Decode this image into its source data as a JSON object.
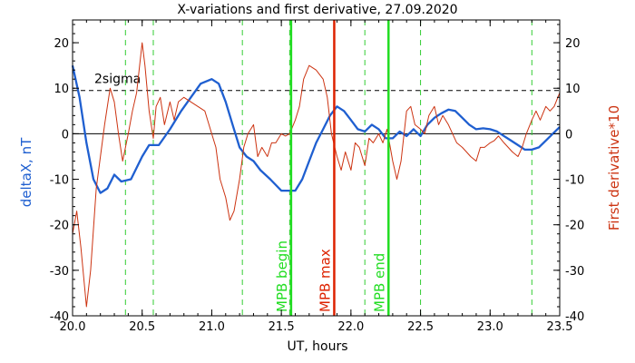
{
  "chart_data": {
    "type": "line",
    "title": "X-variations and first derivative, 27.09.2020",
    "xlabel": "UT, hours",
    "ylabel_left": "deltaX, nT",
    "ylabel_right": "First derivative*10",
    "xlim": [
      20.0,
      23.5
    ],
    "ylim": [
      -40,
      25
    ],
    "x_ticks": [
      20.0,
      20.5,
      21.0,
      21.5,
      22.0,
      22.5,
      23.0,
      23.5
    ],
    "x_tick_labels": [
      "20.0",
      "20.5",
      "21.0",
      "21.5",
      "22.0",
      "22.5",
      "23.0",
      "23.5"
    ],
    "y_ticks": [
      -40,
      -30,
      -20,
      -10,
      0,
      10,
      20
    ],
    "y_tick_labels": [
      "-40",
      "-30",
      "-20",
      "-10",
      "0",
      "10",
      "20"
    ],
    "colors": {
      "deltaX": "#1f5fd0",
      "derivative": "#cc3311",
      "phase_line": "#22dd22",
      "max_line": "#dd2200",
      "dashed_phase": "#33cc33",
      "axis": "#000000"
    },
    "sigma": {
      "value": 9.5,
      "label": "2sigma"
    },
    "zero_line": 0,
    "series": [
      {
        "key": "deltaX",
        "axis": "left",
        "color": "#1f5fd0",
        "points": [
          [
            20.0,
            15
          ],
          [
            20.05,
            8
          ],
          [
            20.1,
            -2
          ],
          [
            20.15,
            -10
          ],
          [
            20.2,
            -13
          ],
          [
            20.25,
            -12
          ],
          [
            20.3,
            -9
          ],
          [
            20.35,
            -10.5
          ],
          [
            20.42,
            -10
          ],
          [
            20.5,
            -5
          ],
          [
            20.55,
            -2.5
          ],
          [
            20.62,
            -2.5
          ],
          [
            20.7,
            1
          ],
          [
            20.78,
            5
          ],
          [
            20.85,
            8
          ],
          [
            20.92,
            11
          ],
          [
            21.0,
            12
          ],
          [
            21.05,
            11
          ],
          [
            21.1,
            7
          ],
          [
            21.15,
            2
          ],
          [
            21.2,
            -3
          ],
          [
            21.25,
            -5
          ],
          [
            21.3,
            -6
          ],
          [
            21.35,
            -8
          ],
          [
            21.42,
            -10
          ],
          [
            21.5,
            -12.5
          ],
          [
            21.6,
            -12.5
          ],
          [
            21.65,
            -10
          ],
          [
            21.7,
            -6
          ],
          [
            21.75,
            -2
          ],
          [
            21.8,
            1
          ],
          [
            21.85,
            4
          ],
          [
            21.9,
            6
          ],
          [
            21.95,
            5
          ],
          [
            22.0,
            3
          ],
          [
            22.05,
            1
          ],
          [
            22.1,
            0.5
          ],
          [
            22.15,
            2
          ],
          [
            22.2,
            1
          ],
          [
            22.25,
            -1
          ],
          [
            22.3,
            -1
          ],
          [
            22.35,
            0.5
          ],
          [
            22.4,
            -0.5
          ],
          [
            22.45,
            1
          ],
          [
            22.5,
            -0.5
          ],
          [
            22.55,
            2
          ],
          [
            22.6,
            3.5
          ],
          [
            22.65,
            4.5
          ],
          [
            22.7,
            5.3
          ],
          [
            22.75,
            5
          ],
          [
            22.8,
            3.5
          ],
          [
            22.85,
            2
          ],
          [
            22.9,
            1
          ],
          [
            22.95,
            1.2
          ],
          [
            23.0,
            1
          ],
          [
            23.05,
            0.5
          ],
          [
            23.1,
            -0.5
          ],
          [
            23.15,
            -1.5
          ],
          [
            23.2,
            -2.5
          ],
          [
            23.25,
            -3.5
          ],
          [
            23.3,
            -3.5
          ],
          [
            23.35,
            -3
          ],
          [
            23.4,
            -1.5
          ],
          [
            23.45,
            0
          ],
          [
            23.5,
            1.5
          ]
        ]
      },
      {
        "key": "derivative",
        "axis": "right",
        "color": "#cc3311",
        "points": [
          [
            20.0,
            -22
          ],
          [
            20.03,
            -17
          ],
          [
            20.06,
            -25
          ],
          [
            20.1,
            -38
          ],
          [
            20.13,
            -30
          ],
          [
            20.17,
            -12
          ],
          [
            20.2,
            -5
          ],
          [
            20.23,
            2
          ],
          [
            20.27,
            10
          ],
          [
            20.3,
            7
          ],
          [
            20.33,
            0
          ],
          [
            20.36,
            -6
          ],
          [
            20.4,
            0
          ],
          [
            20.43,
            5
          ],
          [
            20.46,
            9
          ],
          [
            20.5,
            20
          ],
          [
            20.52,
            15
          ],
          [
            20.55,
            5
          ],
          [
            20.58,
            -1
          ],
          [
            20.6,
            6
          ],
          [
            20.63,
            8
          ],
          [
            20.66,
            2
          ],
          [
            20.7,
            7
          ],
          [
            20.73,
            3
          ],
          [
            20.76,
            7
          ],
          [
            20.8,
            8
          ],
          [
            20.85,
            7
          ],
          [
            20.9,
            6
          ],
          [
            20.95,
            5
          ],
          [
            21.0,
            0
          ],
          [
            21.03,
            -3
          ],
          [
            21.06,
            -10
          ],
          [
            21.1,
            -14
          ],
          [
            21.13,
            -19
          ],
          [
            21.16,
            -17
          ],
          [
            21.2,
            -10
          ],
          [
            21.23,
            -3
          ],
          [
            21.26,
            0
          ],
          [
            21.3,
            2
          ],
          [
            21.33,
            -5
          ],
          [
            21.36,
            -3
          ],
          [
            21.4,
            -5
          ],
          [
            21.43,
            -2
          ],
          [
            21.46,
            -2
          ],
          [
            21.5,
            0
          ],
          [
            21.53,
            -0.5
          ],
          [
            21.56,
            0
          ],
          [
            21.6,
            3
          ],
          [
            21.63,
            6
          ],
          [
            21.66,
            12
          ],
          [
            21.7,
            15
          ],
          [
            21.75,
            14
          ],
          [
            21.8,
            12
          ],
          [
            21.83,
            8
          ],
          [
            21.86,
            0
          ],
          [
            21.9,
            -5
          ],
          [
            21.93,
            -8
          ],
          [
            21.96,
            -4
          ],
          [
            22.0,
            -8
          ],
          [
            22.03,
            -2
          ],
          [
            22.06,
            -3
          ],
          [
            22.1,
            -7
          ],
          [
            22.13,
            -1
          ],
          [
            22.16,
            -2
          ],
          [
            22.2,
            0
          ],
          [
            22.23,
            -2
          ],
          [
            22.26,
            1
          ],
          [
            22.3,
            -6
          ],
          [
            22.33,
            -10
          ],
          [
            22.36,
            -6
          ],
          [
            22.4,
            5
          ],
          [
            22.43,
            6
          ],
          [
            22.46,
            2
          ],
          [
            22.5,
            1
          ],
          [
            22.53,
            0
          ],
          [
            22.56,
            4
          ],
          [
            22.6,
            6
          ],
          [
            22.63,
            2
          ],
          [
            22.66,
            4
          ],
          [
            22.7,
            2
          ],
          [
            22.73,
            0
          ],
          [
            22.76,
            -2
          ],
          [
            22.8,
            -3
          ],
          [
            22.83,
            -4
          ],
          [
            22.86,
            -5
          ],
          [
            22.9,
            -6
          ],
          [
            22.93,
            -3
          ],
          [
            22.96,
            -3
          ],
          [
            23.0,
            -2
          ],
          [
            23.03,
            -1.5
          ],
          [
            23.06,
            -0.5
          ],
          [
            23.1,
            -2
          ],
          [
            23.13,
            -3
          ],
          [
            23.16,
            -4
          ],
          [
            23.2,
            -5
          ],
          [
            23.23,
            -3
          ],
          [
            23.26,
            0
          ],
          [
            23.3,
            3
          ],
          [
            23.33,
            5
          ],
          [
            23.36,
            3
          ],
          [
            23.4,
            6
          ],
          [
            23.43,
            5
          ],
          [
            23.46,
            6
          ],
          [
            23.5,
            9
          ]
        ]
      }
    ],
    "dashed_markers": [
      20.38,
      20.58,
      21.22,
      21.56,
      22.1,
      22.5,
      23.3
    ],
    "solid_markers": [
      {
        "x": 21.57,
        "label": "MPB begin",
        "color": "#22dd22"
      },
      {
        "x": 21.88,
        "label": "MPB max",
        "color": "#dd2200"
      },
      {
        "x": 22.27,
        "label": "MPB end",
        "color": "#22dd22"
      }
    ]
  }
}
